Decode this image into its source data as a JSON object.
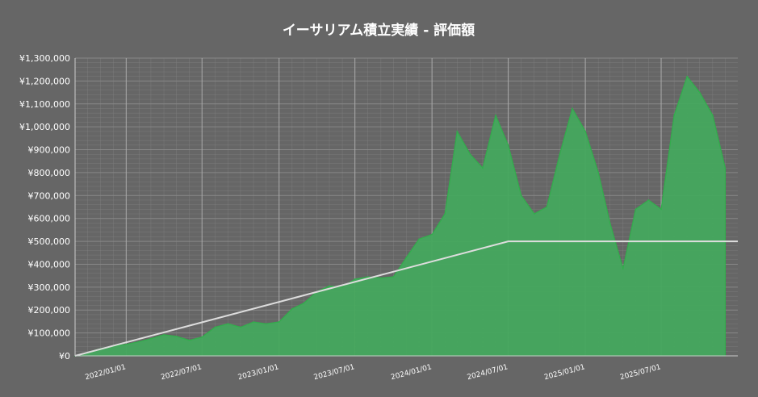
{
  "chart_data": {
    "type": "area",
    "title": "イーサリアム積立実績 - 評価額",
    "xlabel": "",
    "ylabel": "",
    "x_range": [
      "2021-09-01",
      "2025-12-31"
    ],
    "ylim": [
      0,
      1300000
    ],
    "y_ticks": [
      "¥0",
      "¥100,000",
      "¥200,000",
      "¥300,000",
      "¥400,000",
      "¥500,000",
      "¥600,000",
      "¥700,000",
      "¥800,000",
      "¥900,000",
      "¥1,000,000",
      "¥1,100,000",
      "¥1,200,000",
      "¥1,300,000"
    ],
    "x_ticks": [
      {
        "date": "2022-01-01",
        "label": "2022/01/01"
      },
      {
        "date": "2022-07-01",
        "label": "2022/07/01"
      },
      {
        "date": "2023-01-01",
        "label": "2023/01/01"
      },
      {
        "date": "2023-07-01",
        "label": "2023/07/01"
      },
      {
        "date": "2024-01-01",
        "label": "2024/01/01"
      },
      {
        "date": "2024-07-01",
        "label": "2024/07/01"
      },
      {
        "date": "2025-01-01",
        "label": "2025/01/01"
      },
      {
        "date": "2025-07-01",
        "label": "2025/07/01"
      }
    ],
    "grid": true,
    "colors": {
      "background": "#666666",
      "grid": "#888888",
      "area_fill": "#45a85e",
      "area_stroke": "#2fb14a",
      "invested_line": "#dddddd"
    },
    "series": [
      {
        "style": "area",
        "points": [
          [
            "2021-09-01",
            0
          ],
          [
            "2021-10-01",
            15000
          ],
          [
            "2021-11-01",
            32000
          ],
          [
            "2021-12-01",
            42000
          ],
          [
            "2022-01-01",
            50000
          ],
          [
            "2022-02-01",
            62000
          ],
          [
            "2022-03-01",
            75000
          ],
          [
            "2022-04-01",
            92000
          ],
          [
            "2022-05-01",
            85000
          ],
          [
            "2022-06-01",
            68000
          ],
          [
            "2022-07-01",
            82000
          ],
          [
            "2022-08-01",
            125000
          ],
          [
            "2022-09-01",
            140000
          ],
          [
            "2022-10-01",
            125000
          ],
          [
            "2022-11-01",
            148000
          ],
          [
            "2022-12-01",
            140000
          ],
          [
            "2023-01-01",
            148000
          ],
          [
            "2023-02-01",
            205000
          ],
          [
            "2023-03-01",
            230000
          ],
          [
            "2023-04-01",
            280000
          ],
          [
            "2023-05-01",
            305000
          ],
          [
            "2023-06-01",
            300000
          ],
          [
            "2023-07-01",
            335000
          ],
          [
            "2023-08-01",
            345000
          ],
          [
            "2023-09-01",
            340000
          ],
          [
            "2023-10-01",
            345000
          ],
          [
            "2023-11-01",
            430000
          ],
          [
            "2023-12-01",
            510000
          ],
          [
            "2024-01-01",
            530000
          ],
          [
            "2024-02-01",
            620000
          ],
          [
            "2024-03-01",
            980000
          ],
          [
            "2024-04-01",
            880000
          ],
          [
            "2024-05-01",
            820000
          ],
          [
            "2024-06-01",
            1050000
          ],
          [
            "2024-07-01",
            920000
          ],
          [
            "2024-08-01",
            700000
          ],
          [
            "2024-09-01",
            620000
          ],
          [
            "2024-10-01",
            650000
          ],
          [
            "2024-11-01",
            880000
          ],
          [
            "2024-12-01",
            1080000
          ],
          [
            "2025-01-01",
            980000
          ],
          [
            "2025-02-01",
            800000
          ],
          [
            "2025-03-01",
            580000
          ],
          [
            "2025-04-01",
            380000
          ],
          [
            "2025-05-01",
            640000
          ],
          [
            "2025-06-01",
            680000
          ],
          [
            "2025-07-01",
            640000
          ],
          [
            "2025-08-01",
            1050000
          ],
          [
            "2025-09-01",
            1220000
          ],
          [
            "2025-10-01",
            1150000
          ],
          [
            "2025-11-01",
            1050000
          ],
          [
            "2025-12-01",
            820000
          ]
        ]
      },
      {
        "style": "line",
        "points": [
          [
            "2021-09-01",
            0
          ],
          [
            "2024-07-01",
            500000
          ],
          [
            "2025-12-31",
            500000
          ]
        ]
      }
    ]
  }
}
